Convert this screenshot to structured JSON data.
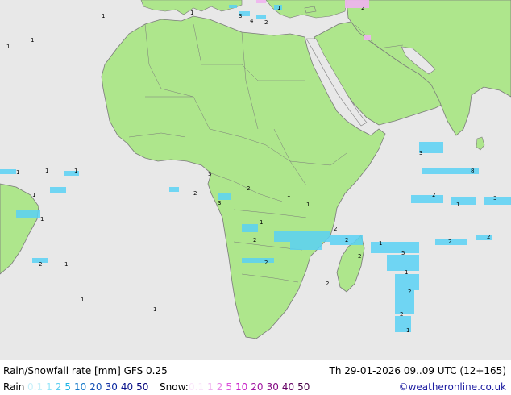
{
  "title_left": "Rain/Snowfall rate [mm] GFS 0.25",
  "title_right": "Th 29-01-2026 09..09 UTC (12+165)",
  "rain_label": "Rain",
  "snow_label": "Snow:",
  "rain_scale": [
    {
      "v": "0.1",
      "c": "#c8f0fa"
    },
    {
      "v": "1",
      "c": "#96e6fa"
    },
    {
      "v": "2",
      "c": "#5acdf0"
    },
    {
      "v": "5",
      "c": "#1eb4e6"
    },
    {
      "v": "10",
      "c": "#1478c8"
    },
    {
      "v": "20",
      "c": "#1450b4"
    },
    {
      "v": "30",
      "c": "#0a28a0"
    },
    {
      "v": "40",
      "c": "#0a148c"
    },
    {
      "v": "50",
      "c": "#000078"
    }
  ],
  "snow_scale": [
    {
      "v": "0.1",
      "c": "#fae6fa"
    },
    {
      "v": "1",
      "c": "#f0b4f0"
    },
    {
      "v": "2",
      "c": "#e682e6"
    },
    {
      "v": "5",
      "c": "#dc50dc"
    },
    {
      "v": "10",
      "c": "#c81ec8"
    },
    {
      "v": "20",
      "c": "#a014a0"
    },
    {
      "v": "30",
      "c": "#820a82"
    },
    {
      "v": "40",
      "c": "#640064"
    },
    {
      "v": "50",
      "c": "#460046"
    }
  ],
  "credit": "©weatheronline.co.uk",
  "colors": {
    "land": "#aee68c",
    "sea": "#e8e8e8",
    "border": "#7a7a7a",
    "precip": "#5ad2f5"
  }
}
